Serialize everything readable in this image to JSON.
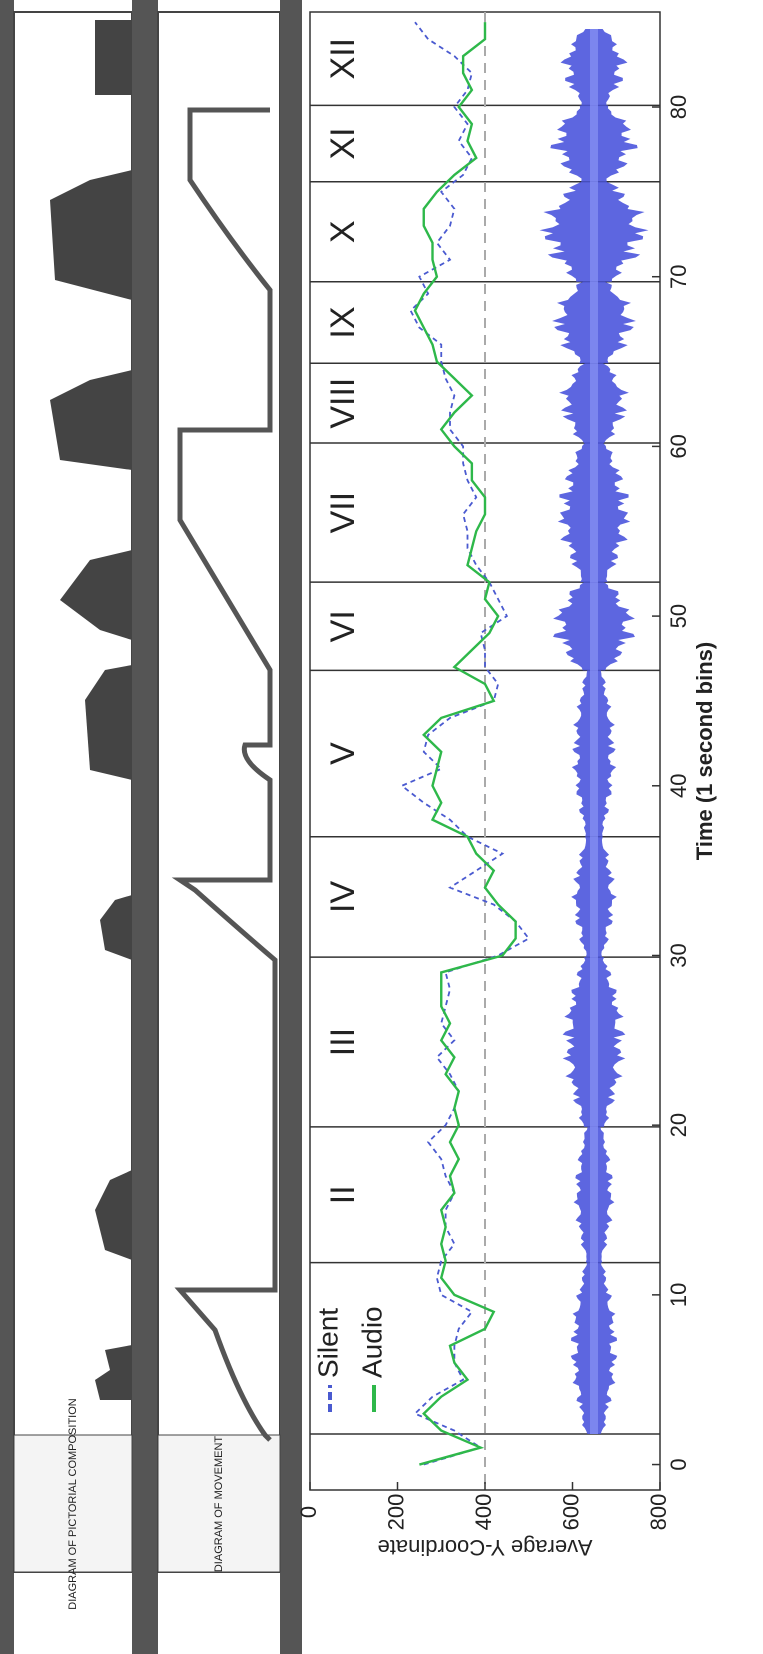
{
  "panels": {
    "composition_label": "DIAGRAM OF PICTORIAL COMPOSITION",
    "movement_label": "DIAGRAM OF MOVEMENT"
  },
  "chart_data": {
    "type": "line",
    "x_label": "Time (1 second bins)",
    "y_label": "Average Y-Coordinate",
    "x": [
      0,
      1,
      2,
      3,
      4,
      5,
      6,
      7,
      8,
      9,
      10,
      11,
      12,
      13,
      14,
      15,
      16,
      17,
      18,
      19,
      20,
      21,
      22,
      23,
      24,
      25,
      26,
      27,
      28,
      29,
      30,
      31,
      32,
      33,
      34,
      35,
      36,
      37,
      38,
      39,
      40,
      41,
      42,
      43,
      44,
      45,
      46,
      47,
      48,
      49,
      50,
      51,
      52,
      53,
      54,
      55,
      56,
      57,
      58,
      59,
      60,
      61,
      62,
      63,
      64,
      65,
      66,
      67,
      68,
      69,
      70,
      71,
      72,
      73,
      74,
      75,
      76,
      77,
      78,
      79,
      80,
      81,
      82,
      83,
      84,
      85
    ],
    "series": [
      {
        "name": "Silent",
        "color": "#4a5ad0",
        "dashed": true,
        "values": [
          260,
          390,
          330,
          240,
          280,
          350,
          330,
          330,
          340,
          370,
          300,
          290,
          300,
          330,
          310,
          310,
          330,
          310,
          300,
          270,
          310,
          330,
          340,
          320,
          290,
          330,
          300,
          310,
          320,
          310,
          430,
          500,
          470,
          420,
          320,
          380,
          440,
          360,
          320,
          260,
          210,
          300,
          260,
          270,
          320,
          420,
          430,
          400,
          400,
          390,
          450,
          430,
          410,
          380,
          360,
          360,
          350,
          380,
          360,
          350,
          350,
          320,
          320,
          330,
          310,
          300,
          300,
          250,
          230,
          270,
          250,
          320,
          290,
          320,
          330,
          300,
          350,
          370,
          340,
          360,
          330,
          360,
          370,
          330,
          270,
          240
        ]
      },
      {
        "name": "Audio",
        "color": "#2eb84a",
        "dashed": false,
        "values": [
          250,
          390,
          300,
          260,
          300,
          360,
          330,
          320,
          400,
          420,
          330,
          300,
          310,
          300,
          310,
          300,
          330,
          320,
          340,
          320,
          340,
          330,
          340,
          310,
          330,
          300,
          320,
          300,
          300,
          300,
          440,
          470,
          470,
          430,
          400,
          420,
          380,
          360,
          280,
          300,
          280,
          290,
          300,
          260,
          300,
          420,
          400,
          330,
          370,
          410,
          430,
          400,
          410,
          360,
          370,
          380,
          400,
          400,
          370,
          370,
          330,
          300,
          330,
          370,
          330,
          290,
          280,
          260,
          240,
          260,
          290,
          280,
          280,
          260,
          260,
          290,
          330,
          380,
          360,
          370,
          340,
          370,
          350,
          350,
          400,
          400
        ]
      }
    ],
    "xlim": [
      -1.5,
      85.6
    ],
    "xticks": [
      0,
      10,
      20,
      30,
      40,
      50,
      60,
      70,
      80
    ],
    "ylim": [
      0,
      800
    ],
    "yticks": [
      0,
      200,
      400,
      600,
      800
    ],
    "y_inverted": true,
    "reference_line": 400,
    "section_bounds": [
      1.8,
      11.9,
      19.9,
      29.9,
      37,
      46.8,
      52,
      60.2,
      64.9,
      69.7,
      75.6,
      80.1
    ],
    "section_labels": [
      null,
      "II",
      "III",
      "IV",
      "V",
      "VI",
      "VII",
      "VIII",
      "IX",
      "X",
      "XI",
      "XII"
    ],
    "grid": false
  }
}
